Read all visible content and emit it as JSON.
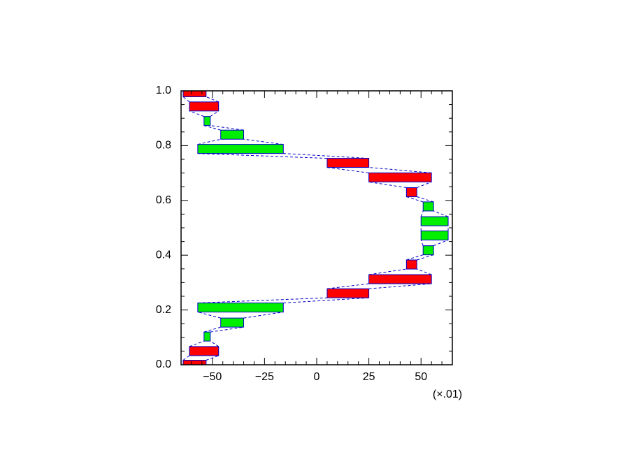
{
  "chart_data": {
    "type": "bar",
    "axis_note": "(×.01)",
    "y": [
      0.0,
      0.05,
      0.103,
      0.154,
      0.209,
      0.261,
      0.3125,
      0.366,
      0.418,
      0.472,
      0.524,
      0.578,
      0.63,
      0.684,
      0.737,
      0.788,
      0.84,
      0.89,
      0.943,
      0.995
    ],
    "x_low": [
      -64,
      -61,
      -54,
      -46,
      -57,
      5,
      25,
      43,
      51,
      50,
      50,
      51,
      43,
      25,
      5,
      -57,
      -46,
      -54,
      -61,
      -64
    ],
    "x_high": [
      -53,
      -47,
      -51,
      -35,
      -16,
      25,
      55,
      48,
      56,
      63,
      63,
      56,
      48,
      55,
      25,
      -16,
      -35,
      -51,
      -47,
      -53
    ],
    "colors": [
      "#ff0000",
      "#ff0000",
      "#00ee00",
      "#00ee00",
      "#00ee00",
      "#ff0000",
      "#ff0000",
      "#ff0000",
      "#00ee00",
      "#00ee00",
      "#00ee00",
      "#00ee00",
      "#ff0000",
      "#ff0000",
      "#ff0000",
      "#00ee00",
      "#00ee00",
      "#00ee00",
      "#ff0000",
      "#ff0000"
    ],
    "edge_color": "#0000cc",
    "xlim": [
      -65,
      65
    ],
    "ylim": [
      0,
      1
    ],
    "xticks": [
      {
        "value": -50,
        "label": "−50"
      },
      {
        "value": -25,
        "label": "−25"
      },
      0,
      25,
      50
    ],
    "yticks": [
      {
        "value": 0,
        "label": "0.0"
      },
      {
        "value": 0.2,
        "label": "0.2"
      },
      {
        "value": 0.4,
        "label": "0.4"
      },
      {
        "value": 0.6,
        "label": "0.6"
      },
      {
        "value": 0.8,
        "label": "0.8"
      },
      {
        "value": 1,
        "label": "1.0"
      }
    ]
  }
}
